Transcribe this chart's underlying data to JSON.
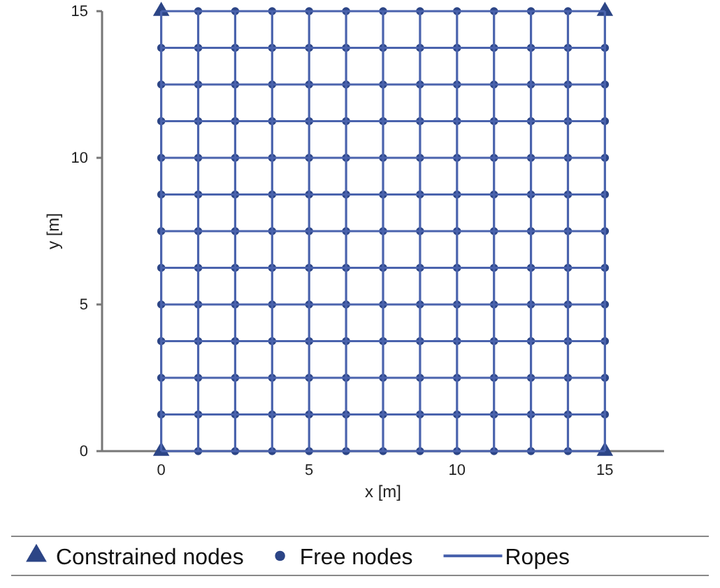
{
  "chart_data": {
    "type": "scatter",
    "xlabel": "x [m]",
    "ylabel": "y [m]",
    "xlim": [
      -2,
      17
    ],
    "ylim": [
      0,
      15
    ],
    "xticks": [
      0,
      5,
      10,
      15
    ],
    "yticks": [
      0,
      5,
      10,
      15
    ],
    "legend": "bottom",
    "series": [
      {
        "name": "Constrained nodes",
        "marker": "triangle",
        "color": "#2c4586",
        "x": [
          0,
          15,
          0,
          15
        ],
        "values": [
          0,
          0,
          15,
          15
        ]
      },
      {
        "name": "Free nodes",
        "marker": "circle",
        "color": "#2c4586",
        "x": [
          1.25,
          2.5,
          3.75,
          5,
          6.25,
          7.5,
          8.75,
          10,
          11.25,
          12.5,
          13.75,
          0,
          1.25,
          2.5,
          3.75,
          5,
          6.25,
          7.5,
          8.75,
          10,
          11.25,
          12.5,
          13.75,
          15,
          0,
          1.25,
          2.5,
          3.75,
          5,
          6.25,
          7.5,
          8.75,
          10,
          11.25,
          12.5,
          13.75,
          15,
          0,
          1.25,
          2.5,
          3.75,
          5,
          6.25,
          7.5,
          8.75,
          10,
          11.25,
          12.5,
          13.75,
          15,
          0,
          1.25,
          2.5,
          3.75,
          5,
          6.25,
          7.5,
          8.75,
          10,
          11.25,
          12.5,
          13.75,
          15,
          0,
          1.25,
          2.5,
          3.75,
          5,
          6.25,
          7.5,
          8.75,
          10,
          11.25,
          12.5,
          13.75,
          15,
          0,
          1.25,
          2.5,
          3.75,
          5,
          6.25,
          7.5,
          8.75,
          10,
          11.25,
          12.5,
          13.75,
          15,
          0,
          1.25,
          2.5,
          3.75,
          5,
          6.25,
          7.5,
          8.75,
          10,
          11.25,
          12.5,
          13.75,
          15,
          0,
          1.25,
          2.5,
          3.75,
          5,
          6.25,
          7.5,
          8.75,
          10,
          11.25,
          12.5,
          13.75,
          15,
          0,
          1.25,
          2.5,
          3.75,
          5,
          6.25,
          7.5,
          8.75,
          10,
          11.25,
          12.5,
          13.75,
          15,
          0,
          1.25,
          2.5,
          3.75,
          5,
          6.25,
          7.5,
          8.75,
          10,
          11.25,
          12.5,
          13.75,
          15,
          0,
          1.25,
          2.5,
          3.75,
          5,
          6.25,
          7.5,
          8.75,
          10,
          11.25,
          12.5,
          13.75,
          15,
          1.25,
          2.5,
          3.75,
          5,
          6.25,
          7.5,
          8.75,
          10,
          11.25,
          12.5,
          13.75
        ],
        "values": [
          0,
          0,
          0,
          0,
          0,
          0,
          0,
          0,
          0,
          0,
          0,
          1.25,
          1.25,
          1.25,
          1.25,
          1.25,
          1.25,
          1.25,
          1.25,
          1.25,
          1.25,
          1.25,
          1.25,
          1.25,
          2.5,
          2.5,
          2.5,
          2.5,
          2.5,
          2.5,
          2.5,
          2.5,
          2.5,
          2.5,
          2.5,
          2.5,
          2.5,
          3.75,
          3.75,
          3.75,
          3.75,
          3.75,
          3.75,
          3.75,
          3.75,
          3.75,
          3.75,
          3.75,
          3.75,
          3.75,
          5,
          5,
          5,
          5,
          5,
          5,
          5,
          5,
          5,
          5,
          5,
          5,
          5,
          6.25,
          6.25,
          6.25,
          6.25,
          6.25,
          6.25,
          6.25,
          6.25,
          6.25,
          6.25,
          6.25,
          6.25,
          6.25,
          7.5,
          7.5,
          7.5,
          7.5,
          7.5,
          7.5,
          7.5,
          7.5,
          7.5,
          7.5,
          7.5,
          7.5,
          7.5,
          8.75,
          8.75,
          8.75,
          8.75,
          8.75,
          8.75,
          8.75,
          8.75,
          8.75,
          8.75,
          8.75,
          8.75,
          8.75,
          10,
          10,
          10,
          10,
          10,
          10,
          10,
          10,
          10,
          10,
          10,
          10,
          10,
          11.25,
          11.25,
          11.25,
          11.25,
          11.25,
          11.25,
          11.25,
          11.25,
          11.25,
          11.25,
          11.25,
          11.25,
          11.25,
          12.5,
          12.5,
          12.5,
          12.5,
          12.5,
          12.5,
          12.5,
          12.5,
          12.5,
          12.5,
          12.5,
          12.5,
          12.5,
          13.75,
          13.75,
          13.75,
          13.75,
          13.75,
          13.75,
          13.75,
          13.75,
          13.75,
          13.75,
          13.75,
          13.75,
          13.75,
          15,
          15,
          15,
          15,
          15,
          15,
          15,
          15,
          15,
          15,
          15
        ]
      },
      {
        "name": "Ropes",
        "type": "line",
        "marker": "none",
        "color": "#4a63ad",
        "x": [
          0,
          15
        ],
        "values": [
          0,
          0
        ]
      },
      {
        "type": "line",
        "marker": "none",
        "color": "#4a63ad",
        "x": [
          0,
          15
        ],
        "values": [
          1.25,
          1.25
        ]
      },
      {
        "type": "line",
        "marker": "none",
        "color": "#4a63ad",
        "x": [
          0,
          15
        ],
        "values": [
          2.5,
          2.5
        ]
      },
      {
        "type": "line",
        "marker": "none",
        "color": "#4a63ad",
        "x": [
          0,
          15
        ],
        "values": [
          3.75,
          3.75
        ]
      },
      {
        "type": "line",
        "marker": "none",
        "color": "#4a63ad",
        "x": [
          0,
          15
        ],
        "values": [
          5,
          5
        ]
      },
      {
        "type": "line",
        "marker": "none",
        "color": "#4a63ad",
        "x": [
          0,
          15
        ],
        "values": [
          6.25,
          6.25
        ]
      },
      {
        "type": "line",
        "marker": "none",
        "color": "#4a63ad",
        "x": [
          0,
          15
        ],
        "values": [
          7.5,
          7.5
        ]
      },
      {
        "type": "line",
        "marker": "none",
        "color": "#4a63ad",
        "x": [
          0,
          15
        ],
        "values": [
          8.75,
          8.75
        ]
      },
      {
        "type": "line",
        "marker": "none",
        "color": "#4a63ad",
        "x": [
          0,
          15
        ],
        "values": [
          10,
          10
        ]
      },
      {
        "type": "line",
        "marker": "none",
        "color": "#4a63ad",
        "x": [
          0,
          15
        ],
        "values": [
          11.25,
          11.25
        ]
      },
      {
        "type": "line",
        "marker": "none",
        "color": "#4a63ad",
        "x": [
          0,
          15
        ],
        "values": [
          12.5,
          12.5
        ]
      },
      {
        "type": "line",
        "marker": "none",
        "color": "#4a63ad",
        "x": [
          0,
          15
        ],
        "values": [
          13.75,
          13.75
        ]
      },
      {
        "type": "line",
        "marker": "none",
        "color": "#4a63ad",
        "x": [
          0,
          15
        ],
        "values": [
          15,
          15
        ]
      },
      {
        "type": "line",
        "marker": "none",
        "color": "#4a63ad",
        "x": [
          0,
          0
        ],
        "values": [
          0,
          15
        ]
      },
      {
        "type": "line",
        "marker": "none",
        "color": "#4a63ad",
        "x": [
          1.25,
          1.25
        ],
        "values": [
          0,
          15
        ]
      },
      {
        "type": "line",
        "marker": "none",
        "color": "#4a63ad",
        "x": [
          2.5,
          2.5
        ],
        "values": [
          0,
          15
        ]
      },
      {
        "type": "line",
        "marker": "none",
        "color": "#4a63ad",
        "x": [
          3.75,
          3.75
        ],
        "values": [
          0,
          15
        ]
      },
      {
        "type": "line",
        "marker": "none",
        "color": "#4a63ad",
        "x": [
          5,
          5
        ],
        "values": [
          0,
          15
        ]
      },
      {
        "type": "line",
        "marker": "none",
        "color": "#4a63ad",
        "x": [
          6.25,
          6.25
        ],
        "values": [
          0,
          15
        ]
      },
      {
        "type": "line",
        "marker": "none",
        "color": "#4a63ad",
        "x": [
          7.5,
          7.5
        ],
        "values": [
          0,
          15
        ]
      },
      {
        "type": "line",
        "marker": "none",
        "color": "#4a63ad",
        "x": [
          8.75,
          8.75
        ],
        "values": [
          0,
          15
        ]
      },
      {
        "type": "line",
        "marker": "none",
        "color": "#4a63ad",
        "x": [
          10,
          10
        ],
        "values": [
          0,
          15
        ]
      },
      {
        "type": "line",
        "marker": "none",
        "color": "#4a63ad",
        "x": [
          11.25,
          11.25
        ],
        "values": [
          0,
          15
        ]
      },
      {
        "type": "line",
        "marker": "none",
        "color": "#4a63ad",
        "x": [
          12.5,
          12.5
        ],
        "values": [
          0,
          15
        ]
      },
      {
        "type": "line",
        "marker": "none",
        "color": "#4a63ad",
        "x": [
          13.75,
          13.75
        ],
        "values": [
          0,
          15
        ]
      },
      {
        "type": "line",
        "marker": "none",
        "color": "#4a63ad",
        "x": [
          15,
          15
        ],
        "values": [
          0,
          15
        ]
      }
    ]
  }
}
